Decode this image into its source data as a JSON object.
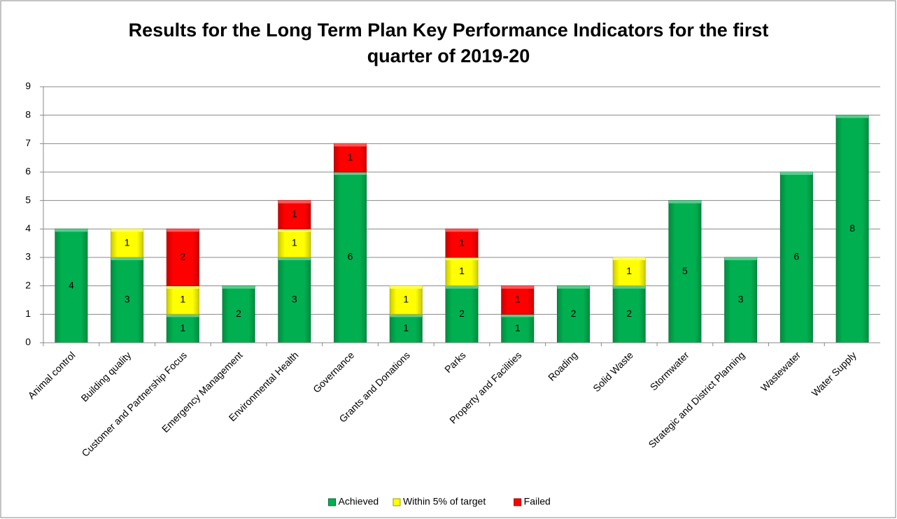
{
  "chart_data": {
    "type": "stacked_bar",
    "title": [
      "Results for the Long Term Plan Key Performance Indicators for the first",
      "quarter of 2019-20"
    ],
    "categories": [
      "Animal control",
      "Building quality",
      "Customer and Partnership Focus",
      "Emergency Management",
      "Environmental Health",
      "Governance",
      "Grants and Donations",
      "Parks",
      "Property and Facilities",
      "Roading",
      "Solid Waste",
      "Stormwater",
      "Strategic and District Planning",
      "Wastewater",
      "Water Supply"
    ],
    "series": [
      {
        "name": "Achieved",
        "color": "#00b050",
        "values": [
          4,
          3,
          1,
          2,
          3,
          6,
          1,
          2,
          1,
          2,
          2,
          5,
          3,
          6,
          8
        ]
      },
      {
        "name": "Within 5% of target",
        "color": "#ffff00",
        "values": [
          null,
          1,
          1,
          null,
          1,
          null,
          1,
          1,
          null,
          null,
          1,
          null,
          null,
          null,
          null
        ]
      },
      {
        "name": "Failed",
        "color": "#ff0000",
        "values": [
          null,
          null,
          2,
          null,
          1,
          1,
          null,
          1,
          1,
          null,
          null,
          null,
          null,
          null,
          null
        ]
      }
    ],
    "ylim": [
      0,
      9
    ],
    "yticks": [
      0,
      1,
      2,
      3,
      4,
      5,
      6,
      7,
      8,
      9
    ],
    "grid": true,
    "legend": "bottom"
  }
}
